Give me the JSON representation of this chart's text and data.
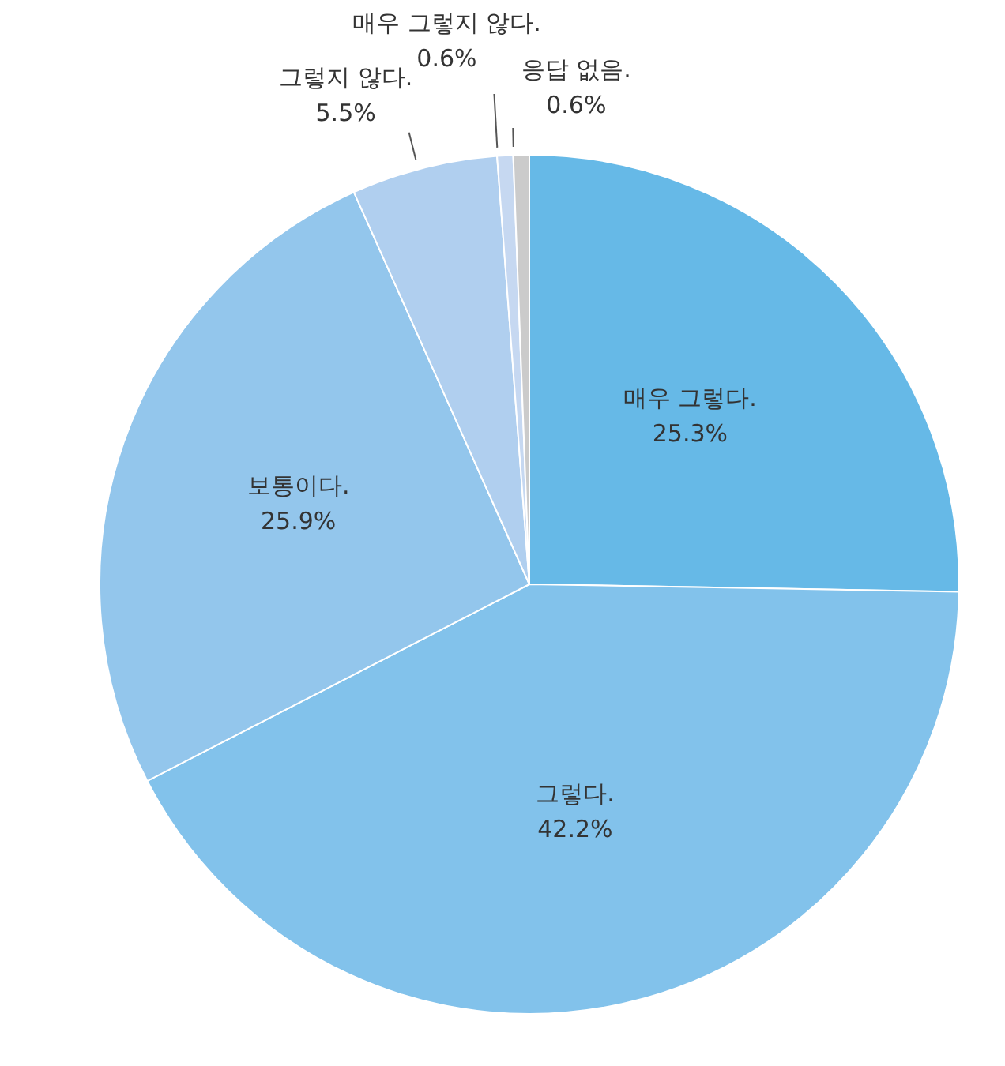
{
  "chart_data": {
    "type": "pie",
    "categories": [
      "매우 그렇다.",
      "그렇다.",
      "보통이다.",
      "그렇지 않다.",
      "매우 그렇지 않다.",
      "응답 없음."
    ],
    "values": [
      25.3,
      42.2,
      25.9,
      5.5,
      0.6,
      0.6
    ],
    "value_labels": [
      "25.3%",
      "42.2%",
      "25.9%",
      "5.5%",
      "0.6%",
      "0.6%"
    ],
    "colors": [
      "#66b9e7",
      "#82c2eb",
      "#93c6ec",
      "#b0cfef",
      "#c6d8f1",
      "#cbcbcb"
    ],
    "legend": false
  }
}
